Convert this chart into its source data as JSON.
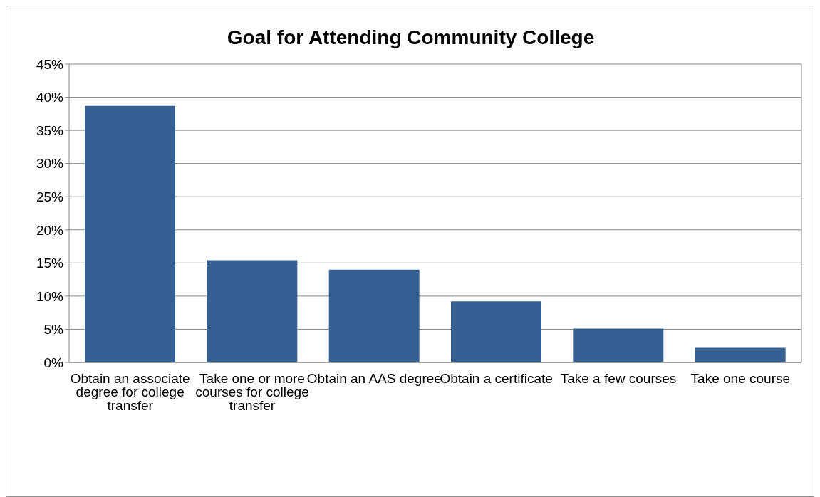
{
  "chart_data": {
    "type": "bar",
    "title": "Goal for Attending Community College",
    "categories": [
      "Obtain an associate degree for college transfer",
      "Take one or more courses for college transfer",
      "Obtain an AAS degree",
      "Obtain a certificate",
      "Take a few courses",
      "Take one course"
    ],
    "values": [
      38.7,
      15.4,
      14.0,
      9.2,
      5.1,
      2.2
    ],
    "color": "#376092",
    "ylim": [
      0,
      45
    ],
    "yticks": [
      {
        "value": 0,
        "label": "0%"
      },
      {
        "value": 5,
        "label": "5%"
      },
      {
        "value": 10,
        "label": "10%"
      },
      {
        "value": 15,
        "label": "15%"
      },
      {
        "value": 20,
        "label": "20%"
      },
      {
        "value": 25,
        "label": "25%"
      },
      {
        "value": 30,
        "label": "30%"
      },
      {
        "value": 35,
        "label": "35%"
      },
      {
        "value": 40,
        "label": "40%"
      },
      {
        "value": 45,
        "label": "45%"
      }
    ],
    "grid": "y"
  }
}
